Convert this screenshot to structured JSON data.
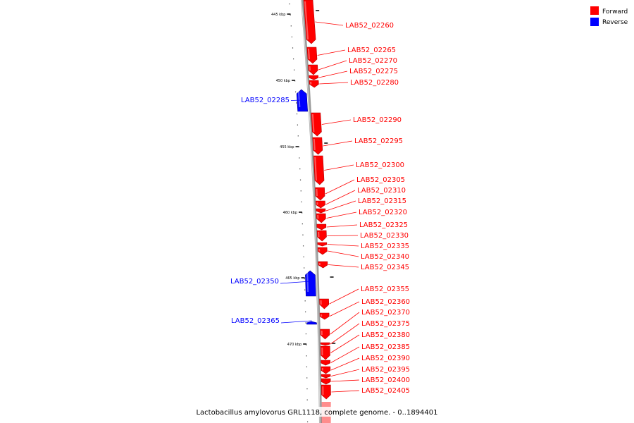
{
  "legend": {
    "forward_label": "Forward",
    "reverse_label": "Reverse",
    "forward_color": "#ff0000",
    "reverse_color": "#0000ff"
  },
  "caption": "Lactobacillus amylovorus GRL1118, complete genome. - 0..1894401",
  "ticks": [
    {
      "kbp": 445,
      "label": "445 kbp"
    },
    {
      "kbp": 450,
      "label": "450 kbp"
    },
    {
      "kbp": 455,
      "label": "455 kbp"
    },
    {
      "kbp": 460,
      "label": "460 kbp"
    },
    {
      "kbp": 465,
      "label": "465 kbp"
    },
    {
      "kbp": 470,
      "label": "470 kbp"
    }
  ],
  "genes": [
    {
      "id": "LAB52_02260",
      "strand": "forward"
    },
    {
      "id": "LAB52_02265",
      "strand": "forward"
    },
    {
      "id": "LAB52_02270",
      "strand": "forward"
    },
    {
      "id": "LAB52_02275",
      "strand": "forward"
    },
    {
      "id": "LAB52_02280",
      "strand": "forward"
    },
    {
      "id": "LAB52_02285",
      "strand": "reverse"
    },
    {
      "id": "LAB52_02290",
      "strand": "forward"
    },
    {
      "id": "LAB52_02295",
      "strand": "forward"
    },
    {
      "id": "LAB52_02300",
      "strand": "forward"
    },
    {
      "id": "LAB52_02305",
      "strand": "forward"
    },
    {
      "id": "LAB52_02310",
      "strand": "forward"
    },
    {
      "id": "LAB52_02315",
      "strand": "forward"
    },
    {
      "id": "LAB52_02320",
      "strand": "forward"
    },
    {
      "id": "LAB52_02325",
      "strand": "forward"
    },
    {
      "id": "LAB52_02330",
      "strand": "forward"
    },
    {
      "id": "LAB52_02335",
      "strand": "forward"
    },
    {
      "id": "LAB52_02340",
      "strand": "forward"
    },
    {
      "id": "LAB52_02345",
      "strand": "forward"
    },
    {
      "id": "LAB52_02350",
      "strand": "reverse"
    },
    {
      "id": "LAB52_02355",
      "strand": "forward"
    },
    {
      "id": "LAB52_02360",
      "strand": "forward"
    },
    {
      "id": "LAB52_02365",
      "strand": "reverse"
    },
    {
      "id": "LAB52_02370",
      "strand": "forward"
    },
    {
      "id": "LAB52_02375",
      "strand": "forward"
    },
    {
      "id": "LAB52_02380",
      "strand": "forward"
    },
    {
      "id": "LAB52_02385",
      "strand": "forward"
    },
    {
      "id": "LAB52_02390",
      "strand": "forward"
    },
    {
      "id": "LAB52_02395",
      "strand": "forward"
    },
    {
      "id": "LAB52_02400",
      "strand": "forward"
    },
    {
      "id": "LAB52_02405",
      "strand": "forward"
    }
  ]
}
